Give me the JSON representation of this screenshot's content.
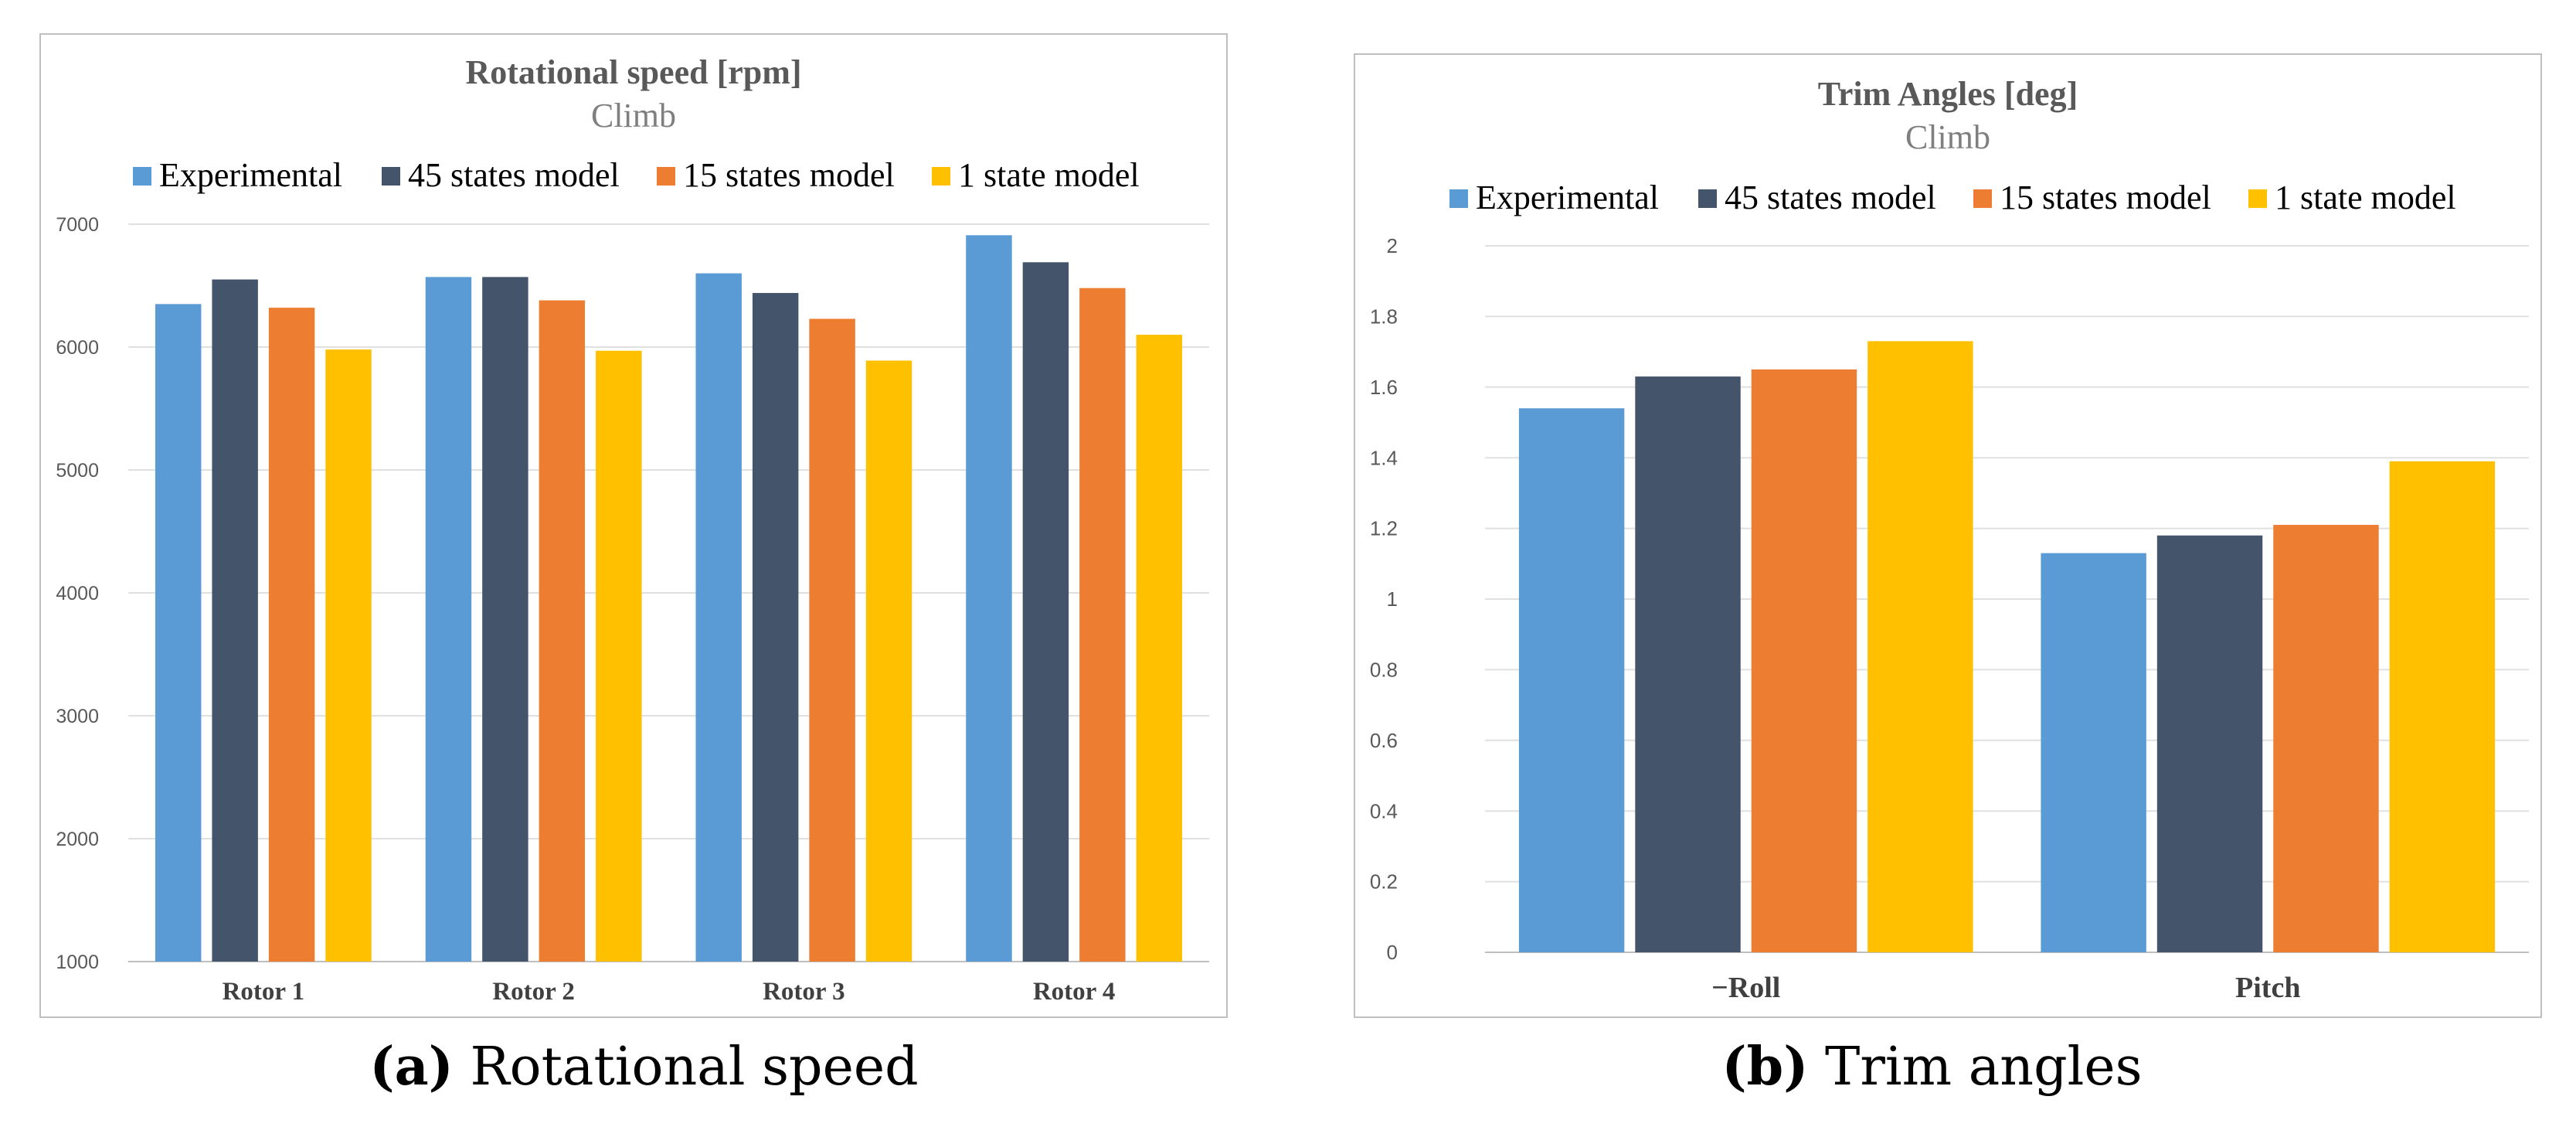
{
  "chart_data": [
    {
      "type": "bar",
      "title": "Rotational speed [rpm]",
      "subtitle": "Climb",
      "categories": [
        "Rotor 1",
        "Rotor 2",
        "Rotor 3",
        "Rotor 4"
      ],
      "series": [
        {
          "name": "Experimental",
          "color": "#5b9bd5",
          "values": [
            6350,
            6570,
            6600,
            6910
          ]
        },
        {
          "name": "45 states model",
          "color": "#44546a",
          "values": [
            6550,
            6570,
            6440,
            6690
          ]
        },
        {
          "name": "15 states model",
          "color": "#ed7d31",
          "values": [
            6320,
            6380,
            6230,
            6480
          ]
        },
        {
          "name": "1 state model",
          "color": "#ffc000",
          "values": [
            5980,
            5970,
            5890,
            6100
          ]
        }
      ],
      "yticks": [
        "1000",
        "2000",
        "3000",
        "4000",
        "5000",
        "6000",
        "7000"
      ],
      "ylim": [
        1000,
        7000
      ],
      "xlabel": "",
      "ylabel": "",
      "legend": "top",
      "grid": true
    },
    {
      "type": "bar",
      "title": "Trim Angles [deg]",
      "subtitle": "Climb",
      "categories": [
        "−Roll",
        "Pitch"
      ],
      "series": [
        {
          "name": "Experimental",
          "color": "#5b9bd5",
          "values": [
            1.54,
            1.13
          ]
        },
        {
          "name": "45 states model",
          "color": "#44546a",
          "values": [
            1.63,
            1.18
          ]
        },
        {
          "name": "15 states model",
          "color": "#ed7d31",
          "values": [
            1.65,
            1.21
          ]
        },
        {
          "name": "1 state model",
          "color": "#ffc000",
          "values": [
            1.73,
            1.39
          ]
        }
      ],
      "yticks": [
        "0",
        "0.2",
        "0.4",
        "0.6",
        "0.8",
        "1",
        "1.2",
        "1.4",
        "1.6",
        "1.8",
        "2"
      ],
      "ylim": [
        0,
        2
      ],
      "xlabel": "",
      "ylabel": "",
      "legend": "top",
      "grid": true
    }
  ],
  "captions": [
    {
      "letter": "(a)",
      "text": "Rotational speed"
    },
    {
      "letter": "(b)",
      "text": "Trim angles"
    }
  ]
}
